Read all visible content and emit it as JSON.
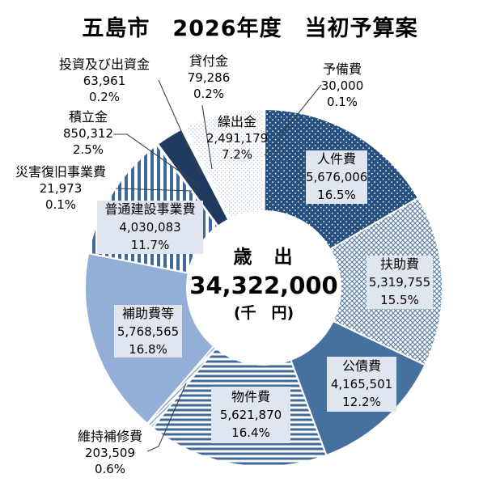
{
  "title": "五島市　2026年度　当初予算案",
  "chart_data": {
    "type": "pie",
    "subtype": "donut",
    "title": "五島市　2026年度　当初予算案",
    "unit": "千円",
    "total": 34322000,
    "center": {
      "title": "歳　出",
      "value": "34,322,000",
      "unit": "(千　円)"
    },
    "legend_position": "none",
    "start_angle_deg": 0,
    "direction": "clockwise",
    "segments": [
      {
        "name": "予備費",
        "value": 30000,
        "value_text": "30,000",
        "percent": "0.1%",
        "share": 0.1,
        "fill_key": "white",
        "label_style": "outside"
      },
      {
        "name": "人件費",
        "value": 5676006,
        "value_text": "5,676,006",
        "percent": "16.5%",
        "share": 16.5,
        "fill_key": "navy-dots",
        "label_style": "inside-box"
      },
      {
        "name": "扶助費",
        "value": 5319755,
        "value_text": "5,319,755",
        "percent": "15.5%",
        "share": 15.5,
        "fill_key": "lattice",
        "label_style": "inside-box"
      },
      {
        "name": "公債費",
        "value": 4165501,
        "value_text": "4,165,501",
        "percent": "12.2%",
        "share": 12.2,
        "fill_key": "steel",
        "label_style": "inside-box"
      },
      {
        "name": "物件費",
        "value": 5621870,
        "value_text": "5,621,870",
        "percent": "16.4%",
        "share": 16.4,
        "fill_key": "hstripe",
        "label_style": "inside-box"
      },
      {
        "name": "維持補修費",
        "value": 203509,
        "value_text": "203,509",
        "percent": "0.6%",
        "share": 0.6,
        "fill_key": "fine-diag",
        "label_style": "outside"
      },
      {
        "name": "補助費等",
        "value": 5768565,
        "value_text": "5,768,565",
        "percent": "16.8%",
        "share": 16.8,
        "fill_key": "periwinkle",
        "label_style": "inside-box"
      },
      {
        "name": "普通建設事業費",
        "value": 4030083,
        "value_text": "4,030,083",
        "percent": "11.7%",
        "share": 11.7,
        "fill_key": "vstripe",
        "label_style": "inside-box"
      },
      {
        "name": "災害復旧事業費",
        "value": 21973,
        "value_text": "21,973",
        "percent": "0.1%",
        "share": 0.1,
        "fill_key": "pale",
        "label_style": "outside"
      },
      {
        "name": "積立金",
        "value": 850312,
        "value_text": "850,312",
        "percent": "2.5%",
        "share": 2.5,
        "fill_key": "darknavy",
        "label_style": "outside"
      },
      {
        "name": "投資及び出資金",
        "value": 63961,
        "value_text": "63,961",
        "percent": "0.2%",
        "share": 0.2,
        "fill_key": "white",
        "label_style": "outside"
      },
      {
        "name": "貸付金",
        "value": 79286,
        "value_text": "79,286",
        "percent": "0.2%",
        "share": 0.2,
        "fill_key": "white",
        "label_style": "outside"
      },
      {
        "name": "繰出金",
        "value": 2491179,
        "value_text": "2,491,179",
        "percent": "7.2%",
        "share": 7.2,
        "fill_key": "light-dots",
        "label_style": "inside-plain"
      }
    ],
    "palette": {
      "navy": "#26507E",
      "steel": "#46719E",
      "stripe_blue": "#3F6A97",
      "periwinkle": "#93AFD7",
      "dark_navy": "#1E3A5F",
      "pale": "#C9D6E4",
      "lattice_blue": "#5E82A4",
      "fine_diag_blue": "#7DA0BE",
      "dot_light_blue": "#A6BBD0",
      "label_box": "#E0E6EF",
      "leader_line": "#404040",
      "text": "#000000",
      "background": "#FFFFFF"
    }
  }
}
